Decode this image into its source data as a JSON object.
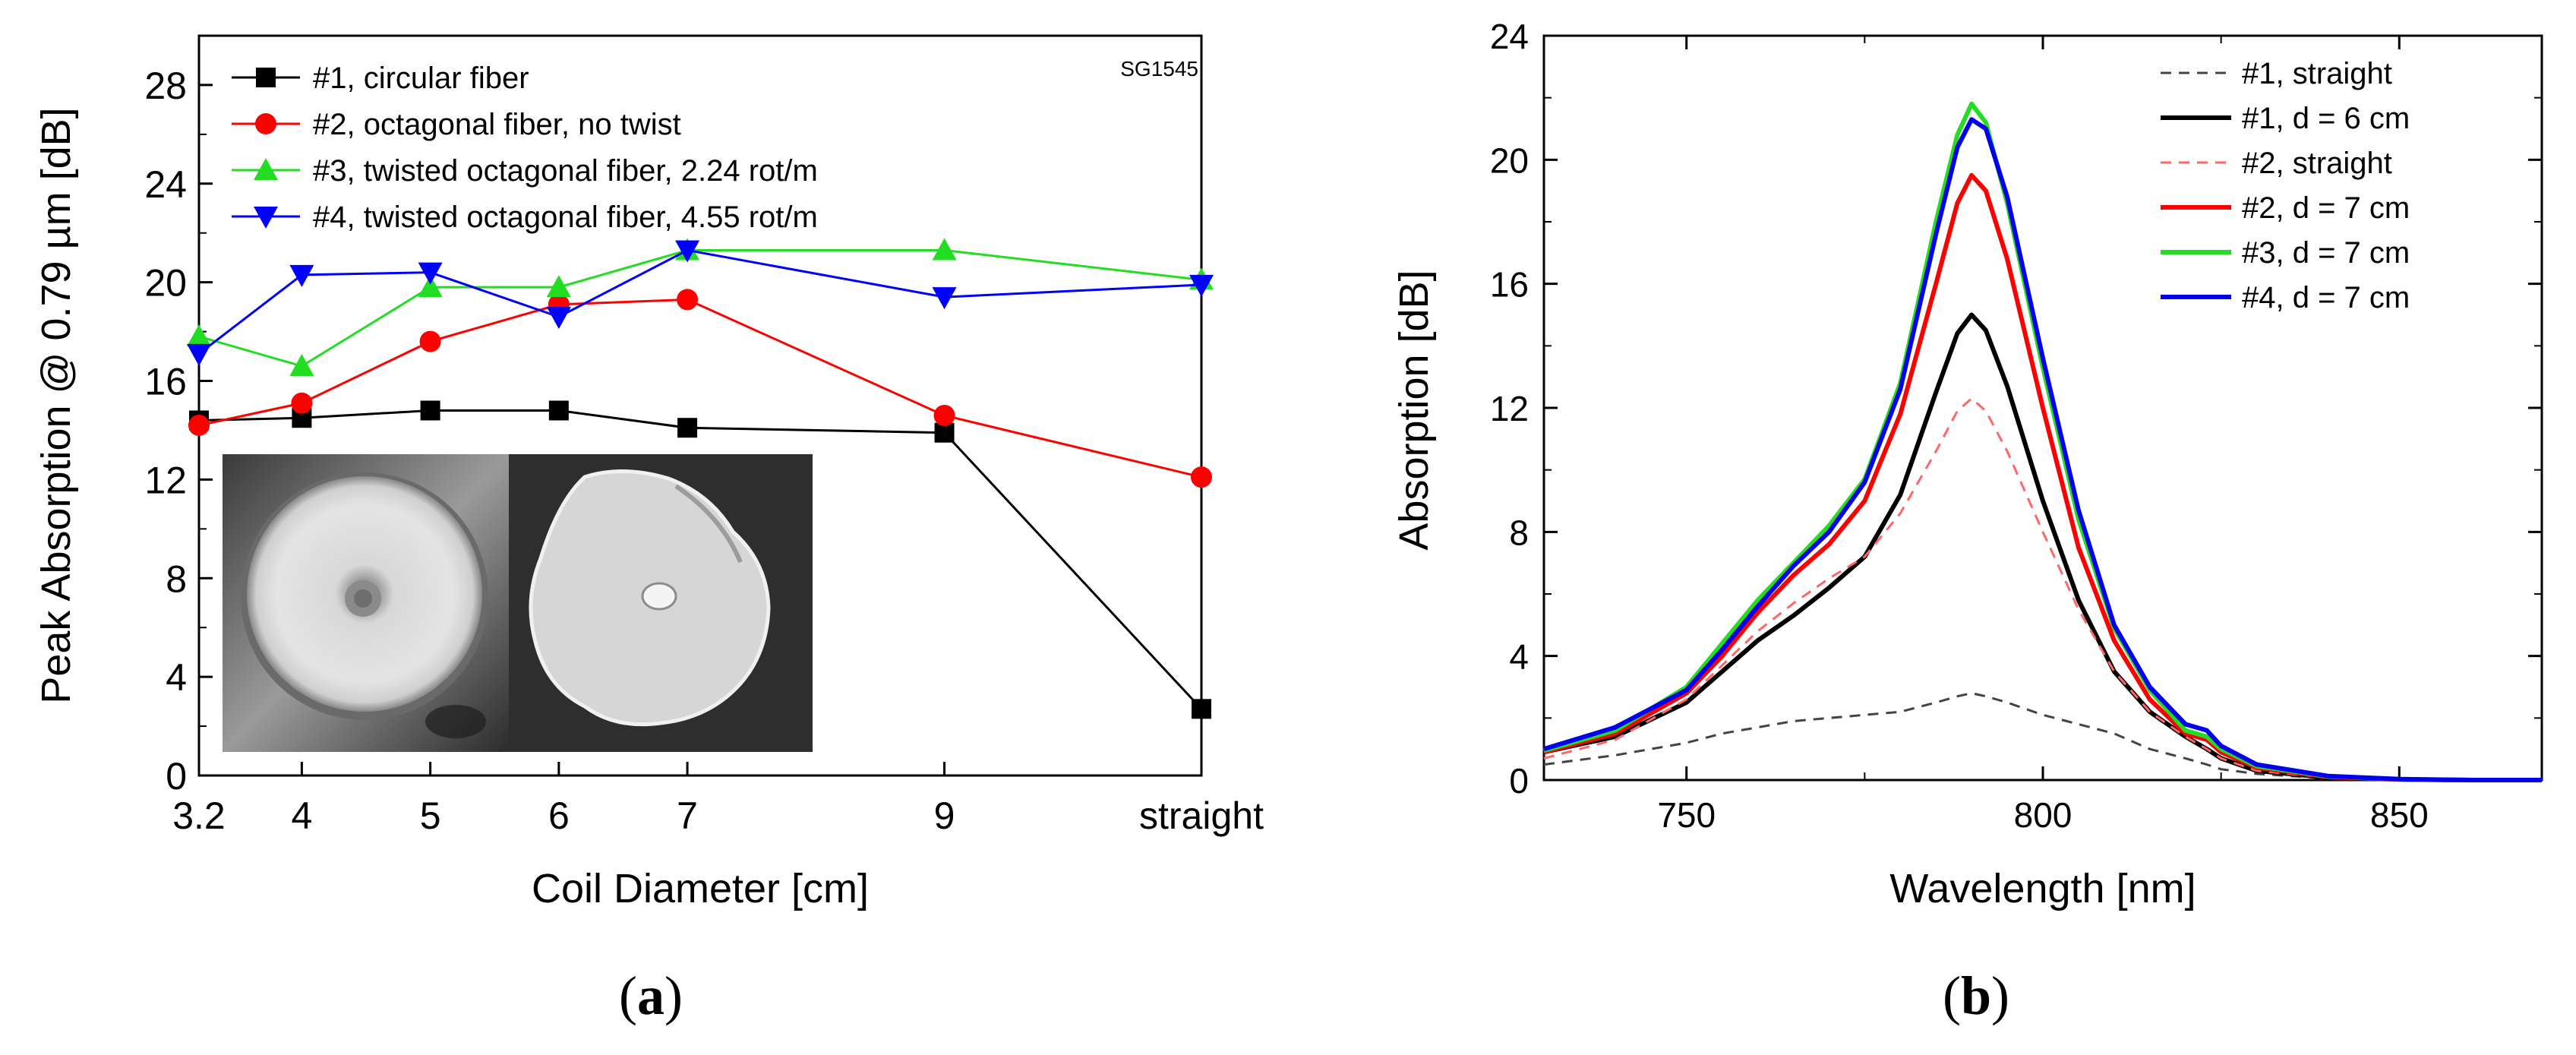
{
  "panels": {
    "a": {
      "caption_open": "(",
      "caption_letter": "a",
      "caption_close": ")"
    },
    "b": {
      "caption_open": "(",
      "caption_letter": "b",
      "caption_close": ")"
    }
  },
  "chart_data": [
    {
      "type": "line",
      "panel": "a",
      "xlabel": "Coil Diameter [cm]",
      "ylabel": "Peak Absorption @ 0.79 µm  [dB]",
      "annotation": "SG1545",
      "x": [
        3.2,
        4,
        5,
        6,
        7,
        9,
        11
      ],
      "xlim": [
        3.2,
        11
      ],
      "x_ticks": [
        3.2,
        4,
        5,
        6,
        7,
        9,
        11
      ],
      "x_tick_labels": [
        "3.2",
        "4",
        "5",
        "6",
        "7",
        "9",
        "straight"
      ],
      "ylim": [
        0,
        30
      ],
      "y_ticks": [
        0,
        4,
        8,
        12,
        16,
        20,
        24,
        28
      ],
      "y_tick_labels": [
        "0",
        "4",
        "8",
        "12",
        "16",
        "20",
        "24",
        "28"
      ],
      "legend_position": "top-left",
      "inset": "fiber cross-section micrographs (circular, octagonal)",
      "series": [
        {
          "name": "#1, circular fiber",
          "color": "#000000",
          "marker": "square",
          "values": [
            14.4,
            14.5,
            14.8,
            14.8,
            14.1,
            13.9,
            2.7
          ]
        },
        {
          "name": "#2, octagonal fiber, no twist",
          "color": "#ff0000",
          "marker": "circle",
          "values": [
            14.2,
            15.1,
            17.6,
            19.1,
            19.3,
            14.6,
            12.1
          ]
        },
        {
          "name": "#3, twisted octagonal fiber, 2.24 rot/m",
          "color": "#22dd22",
          "marker": "triangle-up",
          "values": [
            17.8,
            16.6,
            19.8,
            19.8,
            21.3,
            21.3,
            20.1
          ]
        },
        {
          "name": "#4, twisted octagonal fiber, 4.55 rot/m",
          "color": "#0000ff",
          "marker": "triangle-down",
          "values": [
            17.1,
            20.3,
            20.4,
            18.6,
            21.3,
            19.4,
            19.9
          ]
        }
      ]
    },
    {
      "type": "line",
      "panel": "b",
      "xlabel": "Wavelength [nm]",
      "ylabel": "Absorption [dB]",
      "xlim": [
        730,
        870
      ],
      "x_ticks": [
        750,
        800,
        850
      ],
      "x_tick_labels": [
        "750",
        "800",
        "850"
      ],
      "ylim": [
        0,
        24
      ],
      "y_ticks": [
        0,
        4,
        8,
        12,
        16,
        20,
        24
      ],
      "y_tick_labels": [
        "0",
        "4",
        "8",
        "12",
        "16",
        "20",
        "24"
      ],
      "legend_position": "top-right",
      "x": [
        730,
        740,
        750,
        755,
        760,
        765,
        770,
        775,
        780,
        785,
        788,
        790,
        792,
        795,
        800,
        805,
        810,
        815,
        820,
        823,
        825,
        830,
        840,
        850,
        860,
        870
      ],
      "series": [
        {
          "name": "#1, straight",
          "color": "#444444",
          "style": "dashed",
          "values": [
            0.5,
            0.8,
            1.2,
            1.5,
            1.7,
            1.9,
            2.0,
            2.1,
            2.2,
            2.5,
            2.7,
            2.8,
            2.7,
            2.5,
            2.1,
            1.8,
            1.5,
            1.0,
            0.7,
            0.5,
            0.35,
            0.2,
            0.05,
            0.0,
            0.0,
            0.0
          ]
        },
        {
          "name": "#1, d = 6 cm",
          "color": "#000000",
          "style": "solid",
          "values": [
            0.9,
            1.4,
            2.5,
            3.5,
            4.5,
            5.3,
            6.2,
            7.2,
            9.2,
            12.5,
            14.4,
            15.0,
            14.5,
            12.7,
            9.0,
            5.8,
            3.5,
            2.2,
            1.4,
            1.0,
            0.7,
            0.3,
            0.08,
            0.02,
            0.0,
            0.0
          ]
        },
        {
          "name": "#2, straight",
          "color": "#ff6666",
          "style": "dashed",
          "values": [
            0.7,
            1.3,
            2.6,
            3.7,
            4.8,
            5.7,
            6.5,
            7.2,
            8.6,
            10.6,
            11.9,
            12.3,
            11.9,
            10.6,
            8.0,
            5.5,
            3.5,
            2.2,
            1.4,
            1.0,
            0.7,
            0.3,
            0.08,
            0.02,
            0.0,
            0.0
          ]
        },
        {
          "name": "#2, d = 7 cm",
          "color": "#ff0000",
          "style": "solid",
          "values": [
            0.9,
            1.5,
            2.8,
            4.0,
            5.4,
            6.6,
            7.6,
            9.0,
            11.8,
            16.0,
            18.6,
            19.5,
            19.0,
            16.8,
            12.0,
            7.5,
            4.5,
            2.6,
            1.5,
            1.3,
            0.9,
            0.4,
            0.1,
            0.02,
            0.0,
            0.0
          ]
        },
        {
          "name": "#3, d = 7 cm",
          "color": "#22dd22",
          "style": "solid",
          "values": [
            0.95,
            1.6,
            3.0,
            4.4,
            5.8,
            7.0,
            8.2,
            9.7,
            12.8,
            18.0,
            20.8,
            21.8,
            21.2,
            18.6,
            13.3,
            8.4,
            4.9,
            2.9,
            1.6,
            1.4,
            1.0,
            0.45,
            0.12,
            0.03,
            0.0,
            0.0
          ]
        },
        {
          "name": "#4, d = 7 cm",
          "color": "#0000ee",
          "style": "solid",
          "values": [
            1.0,
            1.7,
            2.9,
            4.2,
            5.6,
            6.9,
            8.0,
            9.6,
            12.6,
            17.6,
            20.4,
            21.3,
            21.0,
            18.8,
            13.6,
            8.7,
            5.0,
            3.0,
            1.8,
            1.6,
            1.1,
            0.5,
            0.13,
            0.03,
            0.0,
            0.0
          ]
        }
      ]
    }
  ]
}
